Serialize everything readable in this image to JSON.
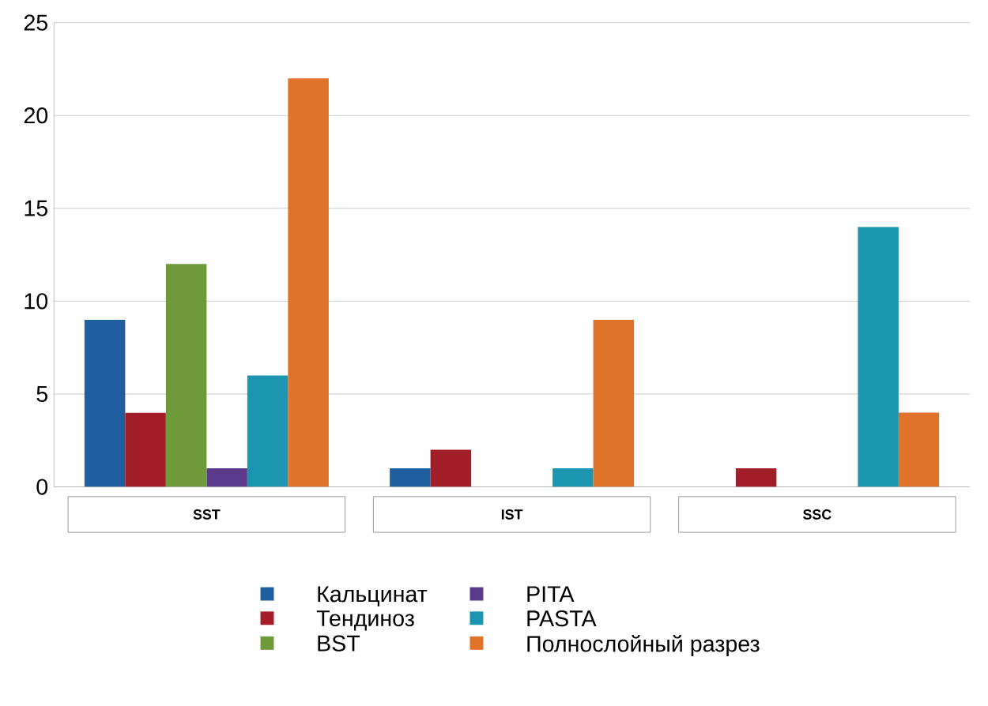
{
  "chart_data": {
    "type": "bar",
    "categories": [
      "SST",
      "IST",
      "SSC"
    ],
    "series": [
      {
        "name": "Кальцинат",
        "color": "#1f5fa0",
        "values": [
          9,
          1,
          0
        ]
      },
      {
        "name": "Тендиноз",
        "color": "#a21f2a",
        "values": [
          4,
          2,
          1
        ]
      },
      {
        "name": "BST",
        "color": "#6e9a3a",
        "values": [
          12,
          0,
          0
        ]
      },
      {
        "name": "PITA",
        "color": "#5b3a8c",
        "values": [
          1,
          0,
          0
        ]
      },
      {
        "name": "PASTA",
        "color": "#1b95b0",
        "values": [
          6,
          1,
          14
        ]
      },
      {
        "name": "Полнослойный разрез",
        "color": "#e0732a",
        "values": [
          22,
          9,
          4
        ]
      }
    ],
    "ylim": [
      0,
      25
    ],
    "yticks": [
      0,
      5,
      10,
      15,
      20,
      25
    ],
    "grid": "y",
    "legend": "bottom"
  }
}
